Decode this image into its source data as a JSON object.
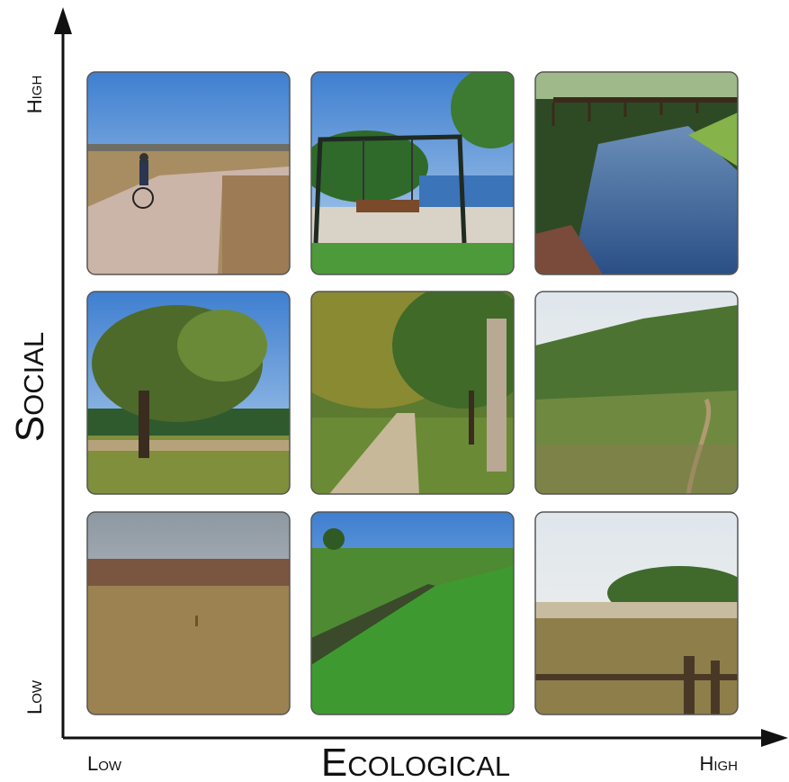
{
  "y_axis": {
    "label": "Social",
    "high": "High",
    "low": "Low"
  },
  "x_axis": {
    "label": "Ecological",
    "low": "Low",
    "high": "High"
  }
}
